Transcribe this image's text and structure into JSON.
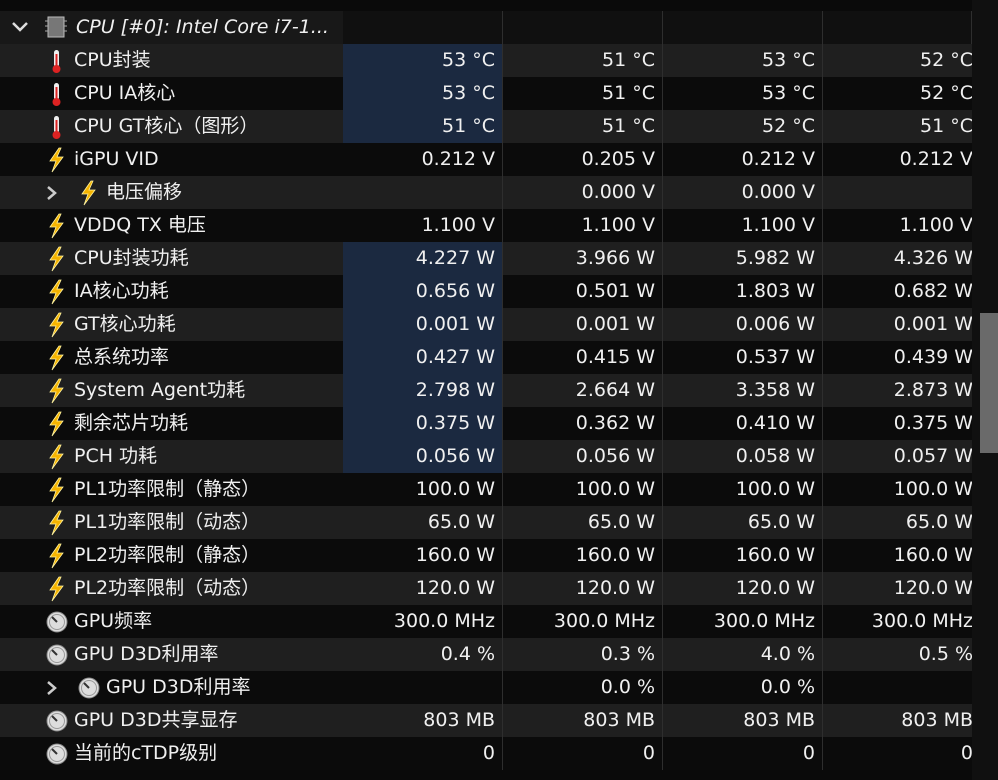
{
  "header": {
    "label": "CPU [#0]: Intel Core i7-1..."
  },
  "rows": [
    {
      "label": "CPU封装",
      "icon": "thermometer",
      "highlighted": true,
      "values": [
        "53 °C",
        "51 °C",
        "53 °C",
        "52 °C"
      ]
    },
    {
      "label": "CPU IA核心",
      "icon": "thermometer",
      "highlighted": true,
      "values": [
        "53 °C",
        "51 °C",
        "53 °C",
        "52 °C"
      ]
    },
    {
      "label": "CPU GT核心（图形）",
      "icon": "thermometer",
      "highlighted": true,
      "values": [
        "51 °C",
        "51 °C",
        "52 °C",
        "51 °C"
      ]
    },
    {
      "label": "iGPU VID",
      "icon": "bolt",
      "values": [
        "0.212 V",
        "0.205 V",
        "0.212 V",
        "0.212 V"
      ]
    },
    {
      "label": "电压偏移",
      "icon": "bolt",
      "expandable": true,
      "values": [
        null,
        "0.000 V",
        "0.000 V",
        null
      ]
    },
    {
      "label": "VDDQ TX 电压",
      "icon": "bolt",
      "values": [
        "1.100 V",
        "1.100 V",
        "1.100 V",
        "1.100 V"
      ]
    },
    {
      "label": "CPU封装功耗",
      "icon": "bolt",
      "highlighted": true,
      "values": [
        "4.227 W",
        "3.966 W",
        "5.982 W",
        "4.326 W"
      ]
    },
    {
      "label": "IA核心功耗",
      "icon": "bolt",
      "highlighted": true,
      "values": [
        "0.656 W",
        "0.501 W",
        "1.803 W",
        "0.682 W"
      ]
    },
    {
      "label": "GT核心功耗",
      "icon": "bolt",
      "highlighted": true,
      "values": [
        "0.001 W",
        "0.001 W",
        "0.006 W",
        "0.001 W"
      ]
    },
    {
      "label": "总系统功率",
      "icon": "bolt",
      "highlighted": true,
      "values": [
        "0.427 W",
        "0.415 W",
        "0.537 W",
        "0.439 W"
      ]
    },
    {
      "label": "System Agent功耗",
      "icon": "bolt",
      "highlighted": true,
      "values": [
        "2.798 W",
        "2.664 W",
        "3.358 W",
        "2.873 W"
      ]
    },
    {
      "label": "剩余芯片功耗",
      "icon": "bolt",
      "highlighted": true,
      "values": [
        "0.375 W",
        "0.362 W",
        "0.410 W",
        "0.375 W"
      ]
    },
    {
      "label": "PCH 功耗",
      "icon": "bolt",
      "highlighted": true,
      "values": [
        "0.056 W",
        "0.056 W",
        "0.058 W",
        "0.057 W"
      ]
    },
    {
      "label": "PL1功率限制（静态）",
      "icon": "bolt",
      "values": [
        "100.0 W",
        "100.0 W",
        "100.0 W",
        "100.0 W"
      ]
    },
    {
      "label": "PL1功率限制（动态）",
      "icon": "bolt",
      "values": [
        "65.0 W",
        "65.0 W",
        "65.0 W",
        "65.0 W"
      ]
    },
    {
      "label": "PL2功率限制（静态）",
      "icon": "bolt",
      "values": [
        "160.0 W",
        "160.0 W",
        "160.0 W",
        "160.0 W"
      ]
    },
    {
      "label": "PL2功率限制（动态）",
      "icon": "bolt",
      "values": [
        "120.0 W",
        "120.0 W",
        "120.0 W",
        "120.0 W"
      ]
    },
    {
      "label": "GPU频率",
      "icon": "gauge",
      "values": [
        "300.0 MHz",
        "300.0 MHz",
        "300.0 MHz",
        "300.0 MHz"
      ]
    },
    {
      "label": "GPU D3D利用率",
      "icon": "gauge",
      "values": [
        "0.4 %",
        "0.3 %",
        "4.0 %",
        "0.5 %"
      ]
    },
    {
      "label": "GPU D3D利用率",
      "icon": "gauge",
      "expandable": true,
      "values": [
        null,
        "0.0 %",
        "0.0 %",
        null
      ]
    },
    {
      "label": "GPU D3D共享显存",
      "icon": "gauge",
      "values": [
        "803 MB",
        "803 MB",
        "803 MB",
        "803 MB"
      ]
    },
    {
      "label": "当前的cTDP级别",
      "icon": "gauge",
      "values": [
        0,
        0,
        0,
        0
      ]
    }
  ]
}
